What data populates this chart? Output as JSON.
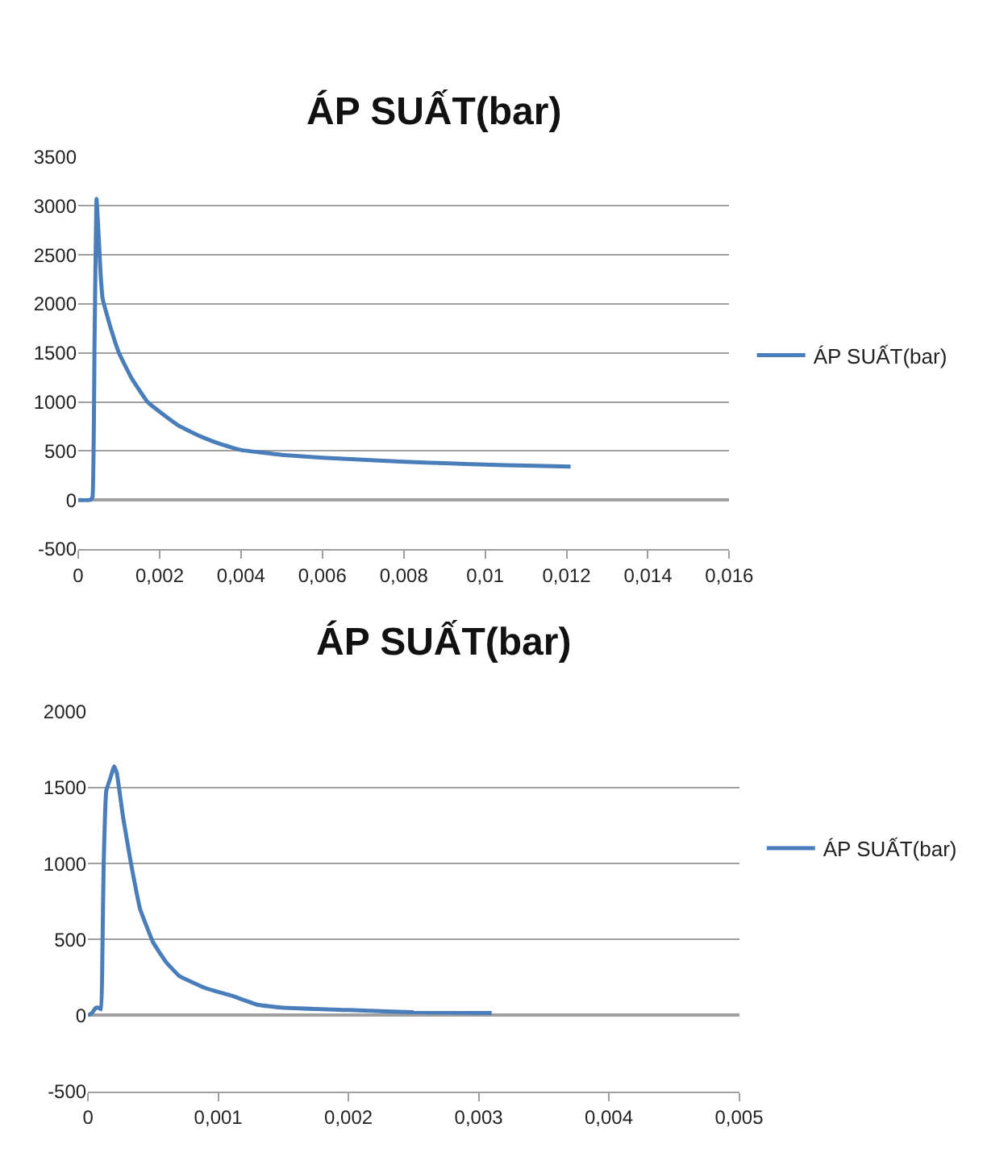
{
  "chart_data": [
    {
      "type": "line",
      "title": "ÁP SUẤT(bar)",
      "legend": "right",
      "grid": "y",
      "x": [
        0,
        0.0003,
        0.00035,
        0.0004,
        0.00045,
        0.0005,
        0.00055,
        0.0006,
        0.0008,
        0.001,
        0.0013,
        0.0017,
        0.002,
        0.0025,
        0.003,
        0.0035,
        0.004,
        0.005,
        0.006,
        0.007,
        0.008,
        0.009,
        0.01,
        0.011,
        0.0121
      ],
      "series": [
        {
          "name": "ÁP SUẤT(bar)",
          "color": "#4a7ebb",
          "values": [
            0,
            0,
            30,
            1600,
            3070,
            2700,
            2300,
            2050,
            1750,
            1500,
            1250,
            1000,
            900,
            750,
            650,
            570,
            510,
            460,
            430,
            410,
            390,
            375,
            360,
            350,
            340
          ]
        }
      ],
      "xlim": [
        0,
        0.016
      ],
      "ylim": [
        -500,
        3500
      ],
      "xticks": [
        0,
        {
          "value": 0.002,
          "label": "0,002"
        },
        {
          "value": 0.004,
          "label": "0,004"
        },
        {
          "value": 0.006,
          "label": "0,006"
        },
        {
          "value": 0.008,
          "label": "0,008"
        },
        {
          "value": 0.01,
          "label": "0,01"
        },
        {
          "value": 0.012,
          "label": "0,012"
        },
        {
          "value": 0.014,
          "label": "0,014"
        },
        {
          "value": 0.016,
          "label": "0,016"
        }
      ],
      "yticks": [
        -500,
        0,
        500,
        1000,
        1500,
        2000,
        2500,
        3000,
        3500
      ]
    },
    {
      "type": "line",
      "title": "ÁP SUẤT(bar)",
      "legend": "right",
      "grid": "y",
      "x": [
        0,
        3e-05,
        6e-05,
        8e-05,
        0.0001,
        0.00011,
        0.00012,
        0.00014,
        0.00017,
        0.0002,
        0.00022,
        0.00027,
        0.00033,
        0.0004,
        0.0005,
        0.0006,
        0.0007,
        0.0009,
        0.0011,
        0.0013,
        0.0015,
        0.002,
        0.0025,
        0.0031
      ],
      "series": [
        {
          "name": "ÁP SUẤT(bar)",
          "color": "#4a7ebb",
          "values": [
            0,
            15,
            50,
            50,
            40,
            400,
            1000,
            1480,
            1560,
            1640,
            1600,
            1300,
            1000,
            700,
            480,
            350,
            260,
            180,
            130,
            70,
            50,
            35,
            20,
            15
          ]
        }
      ],
      "xlim": [
        0,
        0.005
      ],
      "ylim": [
        -500,
        2000
      ],
      "xticks": [
        0,
        {
          "value": 0.001,
          "label": "0,001"
        },
        {
          "value": 0.002,
          "label": "0,002"
        },
        {
          "value": 0.003,
          "label": "0,003"
        },
        {
          "value": 0.004,
          "label": "0,004"
        },
        {
          "value": 0.005,
          "label": "0,005"
        }
      ],
      "yticks": [
        -500,
        0,
        500,
        1000,
        1500,
        2000
      ]
    }
  ]
}
